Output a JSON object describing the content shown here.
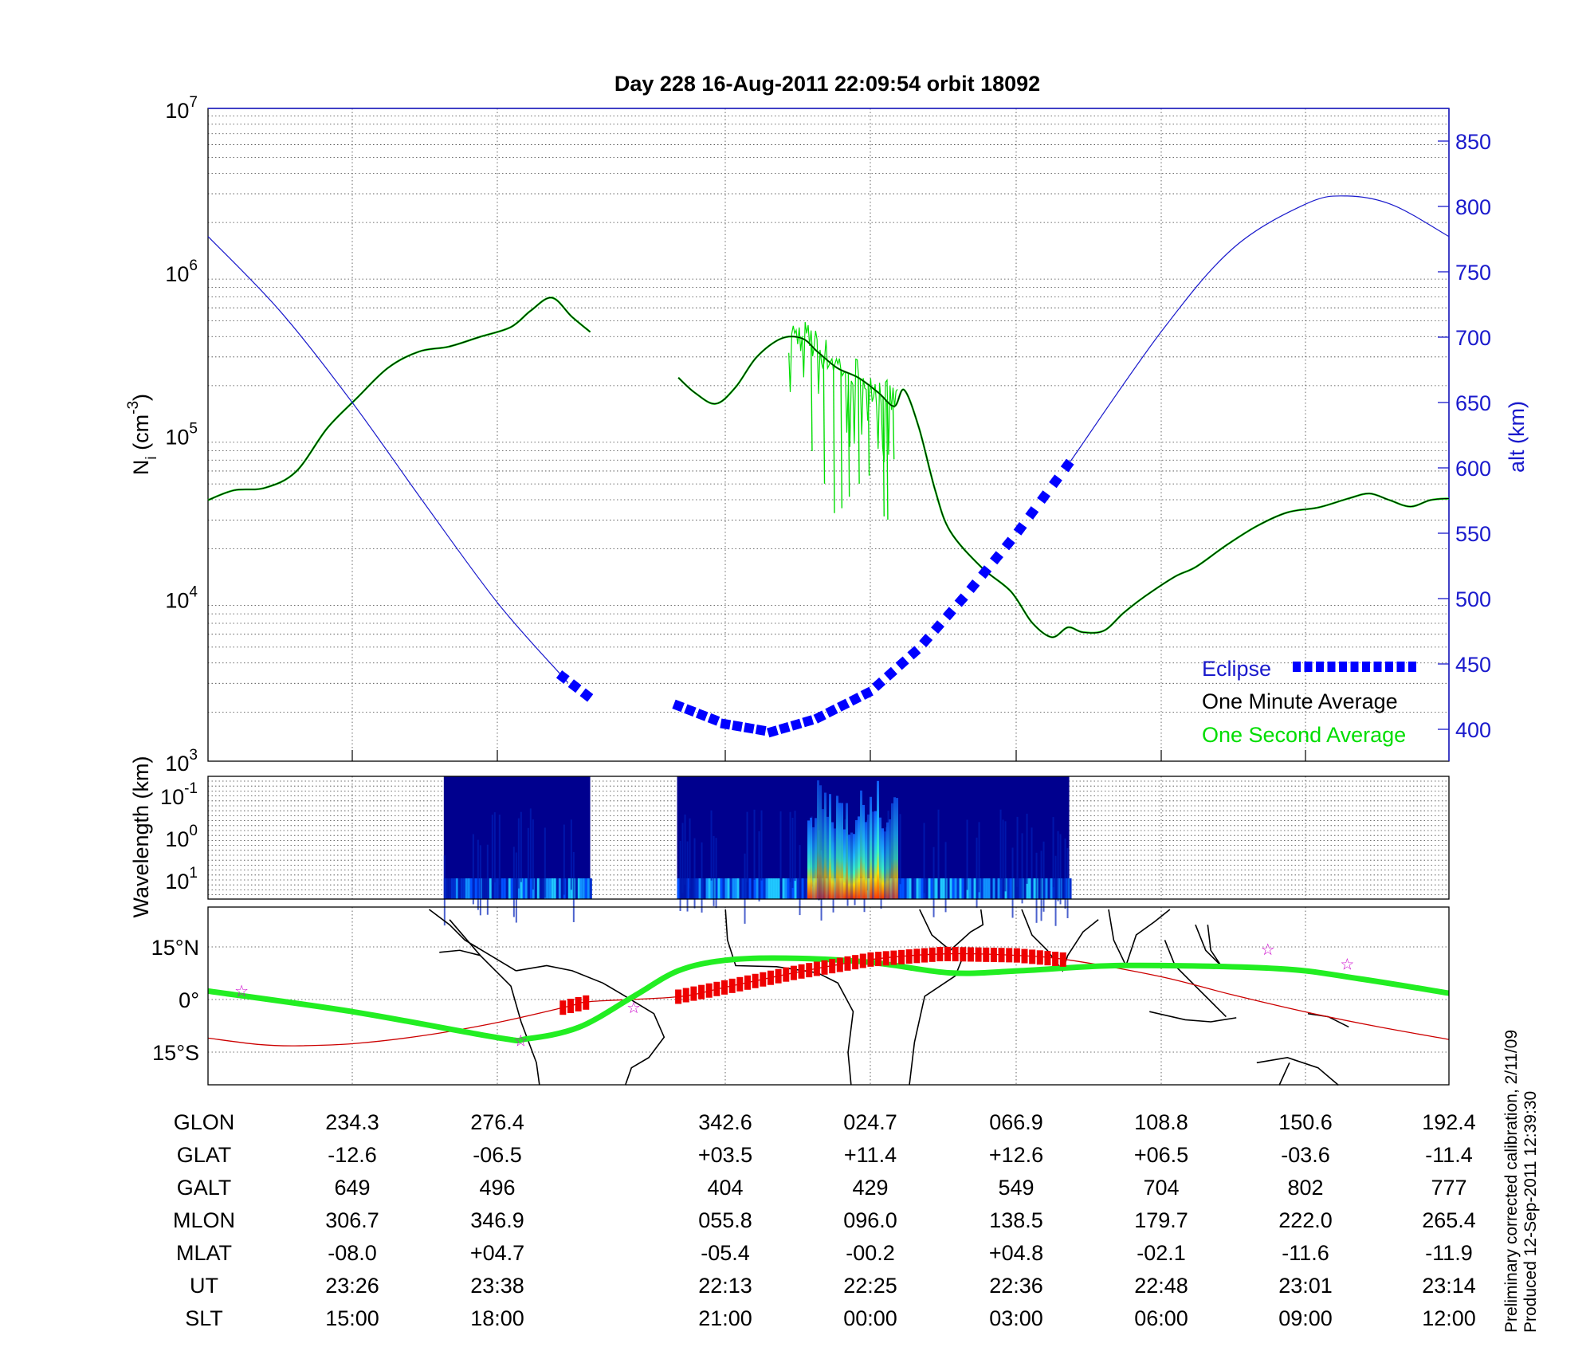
{
  "title": "Day 228  16-Aug-2011 22:09:54   orbit 18092",
  "chart_data": [
    {
      "type": "line",
      "name": "ion-density-and-altitude",
      "x_units": "percent of orbit segment shown (left to right)",
      "ylabel": {
        "base": "N",
        "sub": "i",
        "mid": " (cm",
        "sup": "-3",
        "end": ")"
      },
      "yscale": "log",
      "ylim": [
        1000,
        10000000
      ],
      "yticks": [
        {
          "base": "10",
          "exp": "7",
          "value": 7
        },
        {
          "base": "10",
          "exp": "6",
          "value": 6
        },
        {
          "base": "10",
          "exp": "5",
          "value": 5
        },
        {
          "base": "10",
          "exp": "4",
          "value": 4
        },
        {
          "base": "10",
          "exp": "3",
          "value": 3
        }
      ],
      "y2label": "alt (km)",
      "y2lim": [
        375,
        875
      ],
      "y2ticks": [
        "400",
        "450",
        "500",
        "550",
        "600",
        "650",
        "700",
        "750",
        "800",
        "850"
      ],
      "grid": true,
      "legend_position": "bottom-right",
      "legend": [
        {
          "label": "Eclipse",
          "color": "#0000ff"
        },
        {
          "label": "One Minute Average",
          "color": "#000000"
        },
        {
          "label": "One Second Average",
          "color": "#00dd00"
        }
      ],
      "series": [
        {
          "name": "One Minute Average (log10 Ni)",
          "color": "#000000",
          "segments": [
            [
              [
                0,
                4.6
              ],
              [
                2.1,
                4.66
              ],
              [
                4.6,
                4.675
              ],
              [
                7.1,
                4.775
              ],
              [
                9.6,
                5.04
              ],
              [
                12.0,
                5.225
              ],
              [
                14.5,
                5.41
              ],
              [
                17.0,
                5.51
              ],
              [
                19.4,
                5.54
              ],
              [
                21.9,
                5.6
              ],
              [
                24.4,
                5.66
              ],
              [
                26.0,
                5.76
              ],
              [
                27.7,
                5.84
              ],
              [
                29.3,
                5.725
              ],
              [
                30.8,
                5.63
              ]
            ],
            [
              [
                37.9,
                5.35
              ],
              [
                39.2,
                5.26
              ],
              [
                40.9,
                5.19
              ],
              [
                42.5,
                5.29
              ],
              [
                44.2,
                5.475
              ],
              [
                46.2,
                5.59
              ],
              [
                47.9,
                5.59
              ],
              [
                49.1,
                5.51
              ],
              [
                50.7,
                5.41
              ],
              [
                52.4,
                5.35
              ],
              [
                54.0,
                5.26
              ],
              [
                55.3,
                5.175
              ],
              [
                56.1,
                5.275
              ],
              [
                57.3,
                5.04
              ],
              [
                58.6,
                4.66
              ],
              [
                59.8,
                4.41
              ],
              [
                62.3,
                4.19
              ],
              [
                64.7,
                4.04
              ],
              [
                66.4,
                3.85
              ],
              [
                68.0,
                3.76
              ],
              [
                69.3,
                3.82
              ],
              [
                70.5,
                3.79
              ],
              [
                72.2,
                3.8
              ],
              [
                73.8,
                3.91
              ],
              [
                75.5,
                4.01
              ],
              [
                77.9,
                4.13
              ],
              [
                79.6,
                4.19
              ],
              [
                82.0,
                4.32
              ],
              [
                84.5,
                4.44
              ],
              [
                87.0,
                4.525
              ],
              [
                89.5,
                4.555
              ],
              [
                91.9,
                4.61
              ],
              [
                93.6,
                4.64
              ],
              [
                95.2,
                4.6
              ],
              [
                96.9,
                4.56
              ],
              [
                98.5,
                4.6
              ],
              [
                100,
                4.61
              ]
            ]
          ]
        },
        {
          "name": "One Second Average dips (log10 Ni)",
          "color": "#00dd00",
          "dips": [
            [
              48.6,
              4.9
            ],
            [
              49.6,
              4.7
            ],
            [
              50.4,
              4.52
            ],
            [
              51.0,
              4.55
            ],
            [
              51.6,
              4.62
            ],
            [
              52.4,
              4.7
            ],
            [
              53.2,
              4.75
            ],
            [
              54.4,
              4.5
            ],
            [
              54.7,
              4.48
            ],
            [
              55.2,
              4.85
            ]
          ]
        },
        {
          "name": "Altitude (km)",
          "color": "#0000cc",
          "points": [
            [
              0,
              777
            ],
            [
              5.8,
              720
            ],
            [
              11.7,
              649
            ],
            [
              17.5,
              572
            ],
            [
              23.4,
              496
            ],
            [
              28.6,
              440
            ],
            [
              30.8,
              424
            ],
            [
              37.9,
              418
            ],
            [
              41.7,
              404
            ],
            [
              45.4,
              398
            ],
            [
              49.0,
              408
            ],
            [
              53.4,
              429
            ],
            [
              57.3,
              462
            ],
            [
              61.0,
              502
            ],
            [
              65.1,
              549
            ],
            [
              69.5,
              605
            ],
            [
              76.8,
              704
            ],
            [
              82.6,
              768
            ],
            [
              88.5,
              802
            ],
            [
              91.8,
              808
            ],
            [
              95.5,
              801
            ],
            [
              100,
              777
            ]
          ],
          "eclipse_ranges": [
            [
              28.6,
              30.8
            ],
            [
              37.9,
              69.5
            ]
          ]
        }
      ]
    },
    {
      "type": "heatmap",
      "name": "wavelength-spectrogram",
      "ylabel": "Wavelength (km)",
      "yticks": [
        {
          "base": "10",
          "exp": "-1"
        },
        {
          "base": "10",
          "exp": "0"
        },
        {
          "base": "10",
          "exp": "1"
        }
      ],
      "data_ranges": [
        [
          19.0,
          30.8
        ],
        [
          37.8,
          69.4
        ]
      ],
      "high_power_range": [
        48.3,
        55.5
      ],
      "colormap": "jet"
    },
    {
      "type": "line",
      "name": "ground-track-map",
      "yticks": [
        "15°N",
        "0°",
        "15°S"
      ],
      "series": [
        {
          "name": "Orbit track latitude",
          "color": "#cc0000",
          "points": [
            [
              0,
              -11
            ],
            [
              4,
              -12.8
            ],
            [
              7,
              -13.2
            ],
            [
              11.7,
              -12.6
            ],
            [
              17.5,
              -10.2
            ],
            [
              23.4,
              -6.5
            ],
            [
              29,
              -2.0
            ],
            [
              30.8,
              -0.6
            ],
            [
              37.9,
              0.8
            ],
            [
              41.7,
              3.5
            ],
            [
              47.5,
              7.8
            ],
            [
              53.4,
              11.4
            ],
            [
              59.2,
              13.0
            ],
            [
              65.1,
              12.6
            ],
            [
              69.5,
              11.2
            ],
            [
              76.8,
              6.5
            ],
            [
              82.6,
              1.3
            ],
            [
              88.5,
              -3.6
            ],
            [
              94.2,
              -7.7
            ],
            [
              100,
              -11.4
            ]
          ],
          "thick_ranges": [
            [
              28.6,
              30.8
            ],
            [
              37.9,
              69.5
            ]
          ]
        },
        {
          "name": "Magnetic equator",
          "color": "#22ee22",
          "points": [
            [
              0,
              2.4
            ],
            [
              11.7,
              -3.5
            ],
            [
              23.4,
              -10.9
            ],
            [
              25.7,
              -11.2
            ],
            [
              29.9,
              -7.9
            ],
            [
              34.3,
              0.9
            ],
            [
              37.9,
              8.2
            ],
            [
              41.7,
              11.2
            ],
            [
              46.6,
              11.8
            ],
            [
              53.4,
              10.6
            ],
            [
              59.8,
              7.6
            ],
            [
              65.5,
              8.2
            ],
            [
              73.8,
              9.7
            ],
            [
              86.2,
              8.8
            ],
            [
              92.8,
              5.9
            ],
            [
              100,
              1.8
            ]
          ]
        }
      ],
      "markers": [
        [
          2.7,
          2.7
        ],
        [
          34.3,
          -2.1
        ],
        [
          25.2,
          -11.5
        ],
        [
          85.4,
          14.5
        ],
        [
          91.8,
          10.3
        ]
      ],
      "marker_color": "#cc00cc"
    }
  ],
  "table": {
    "rows": [
      {
        "label": "GLON",
        "values": [
          "234.3",
          "276.4",
          "342.6",
          "024.7",
          "066.9",
          "108.8",
          "150.6",
          "192.4"
        ]
      },
      {
        "label": "GLAT",
        "values": [
          "-12.6",
          "-06.5",
          "+03.5",
          "+11.4",
          "+12.6",
          "+06.5",
          "-03.6",
          "-11.4"
        ]
      },
      {
        "label": "GALT",
        "values": [
          "649",
          "496",
          "404",
          "429",
          "549",
          "704",
          "802",
          "777"
        ]
      },
      {
        "label": "MLON",
        "values": [
          "306.7",
          "346.9",
          "055.8",
          "096.0",
          "138.5",
          "179.7",
          "222.0",
          "265.4"
        ]
      },
      {
        "label": "MLAT",
        "values": [
          "-08.0",
          "+04.7",
          "-05.4",
          "-00.2",
          "+04.8",
          "-02.1",
          "-11.6",
          "-11.9"
        ]
      },
      {
        "label": "UT",
        "values": [
          "23:26",
          "23:38",
          "22:13",
          "22:25",
          "22:36",
          "22:48",
          "23:01",
          "23:14"
        ]
      },
      {
        "label": "SLT",
        "values": [
          "15:00",
          "18:00",
          "21:00",
          "00:00",
          "03:00",
          "06:00",
          "09:00",
          "12:00"
        ]
      }
    ]
  },
  "footer": {
    "calibration": "Preliminary corrected calibration, 2/11/09",
    "produced": "Produced 12-Sep-2011 12:39:30"
  }
}
